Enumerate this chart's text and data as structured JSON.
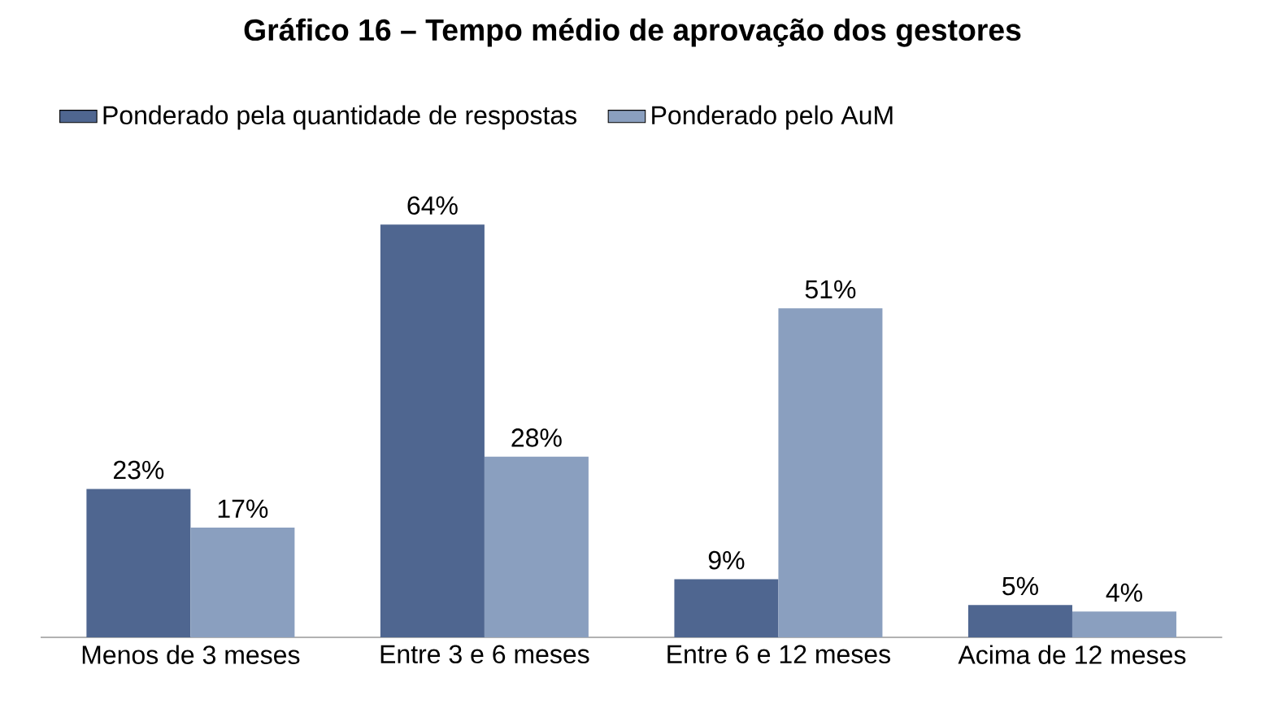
{
  "chart_data": {
    "type": "bar",
    "title": "Gráfico 16 – Tempo médio de aprovação dos gestores",
    "categories": [
      "Menos de 3 meses",
      "Entre 3 e 6 meses",
      "Entre 6 e 12 meses",
      "Acima de 12 meses"
    ],
    "series": [
      {
        "name": "Ponderado pela quantidade de respostas",
        "color": "#4f6690",
        "values": [
          23,
          64,
          9,
          5
        ],
        "value_labels": [
          "23%",
          "64%",
          "9%",
          "5%"
        ]
      },
      {
        "name": "Ponderado pelo AuM",
        "color": "#8a9fbf",
        "values": [
          17,
          28,
          51,
          4
        ],
        "value_labels": [
          "17%",
          "28%",
          "51%",
          "4%"
        ]
      }
    ],
    "legend": "top left"
  }
}
